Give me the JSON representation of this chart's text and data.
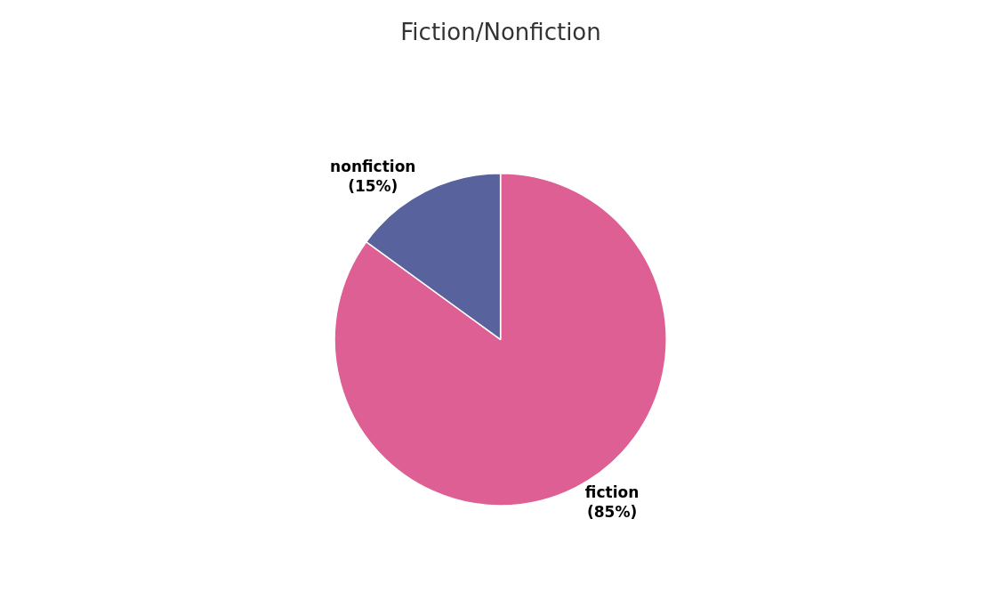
{
  "chart_data": {
    "type": "pie",
    "title": "Fiction/Nonfiction",
    "categories": [
      "fiction",
      "nonfiction"
    ],
    "values": [
      85,
      15
    ],
    "colors": [
      "#de5f93",
      "#58639e"
    ],
    "value_labels": [
      "(85%)",
      "(15%)"
    ],
    "legend": false
  }
}
